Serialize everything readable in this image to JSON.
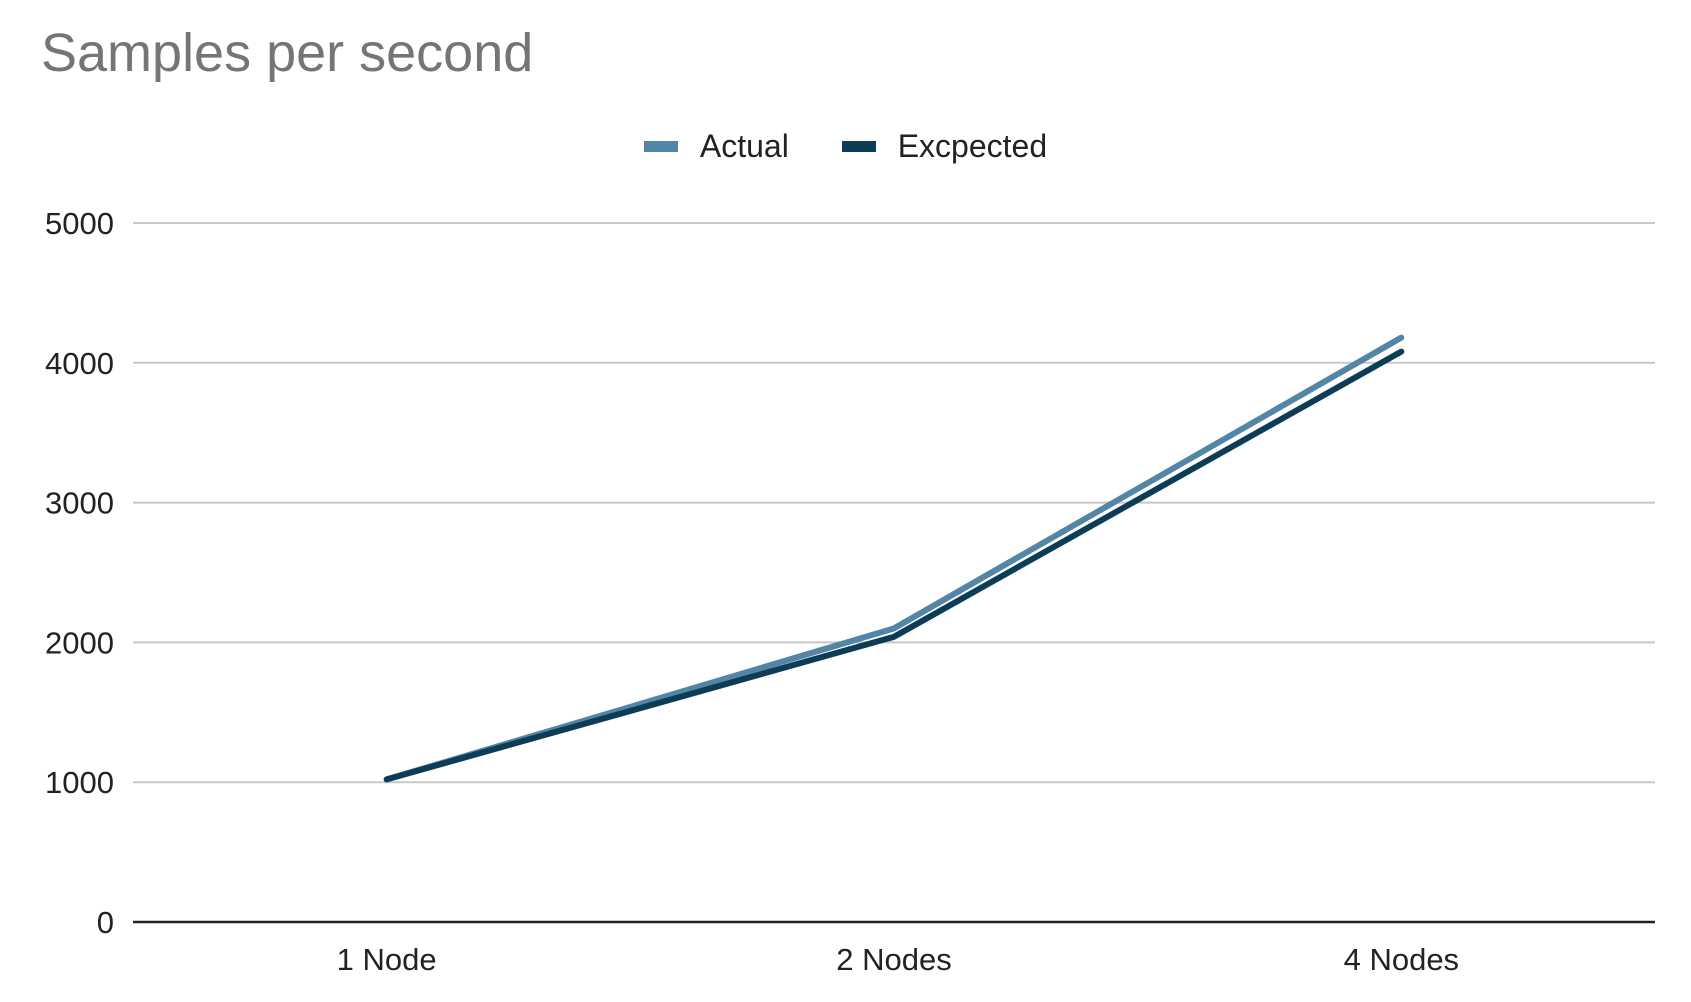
{
  "chart_data": {
    "type": "line",
    "title": "Samples per second",
    "xlabel": "",
    "ylabel": "",
    "categories": [
      "1 Node",
      "2 Nodes",
      "4 Nodes"
    ],
    "series": [
      {
        "name": "Actual",
        "values": [
          1020,
          2100,
          4180
        ],
        "color": "#5285a6"
      },
      {
        "name": "Excpected",
        "values": [
          1020,
          2040,
          4080
        ],
        "color": "#0d3d56"
      }
    ],
    "ylim": [
      0,
      5000
    ],
    "yticks": [
      "0",
      "1000",
      "2000",
      "3000",
      "4000",
      "5000"
    ],
    "grid": true,
    "legend_position": "top-center"
  }
}
